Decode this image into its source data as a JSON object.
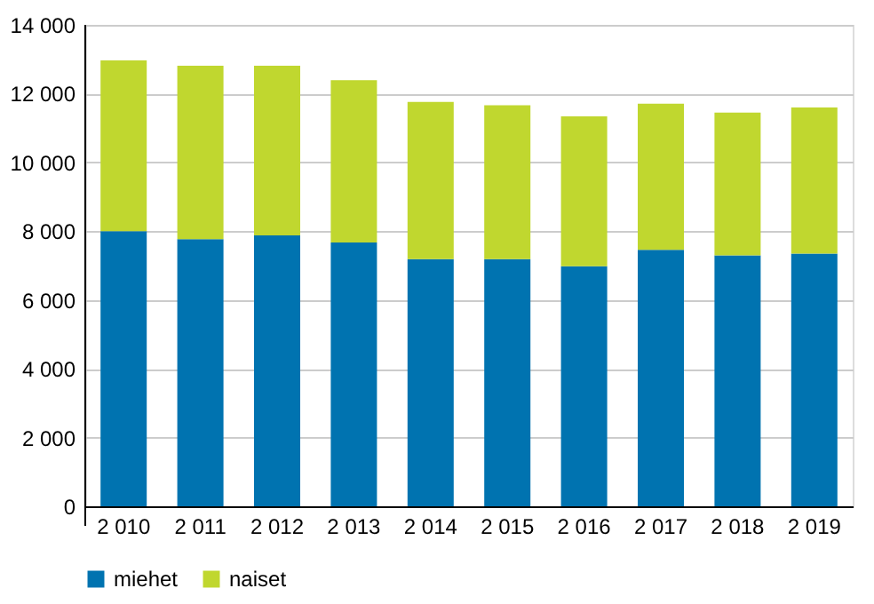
{
  "chart_data": {
    "type": "bar",
    "stacked": true,
    "categories": [
      "2 010",
      "2 011",
      "2 012",
      "2 013",
      "2 014",
      "2 015",
      "2 016",
      "2 017",
      "2 018",
      "2 019"
    ],
    "series": [
      {
        "name": "miehet",
        "color": "#0073b0",
        "values": [
          8000,
          7770,
          7880,
          7670,
          7190,
          7190,
          6980,
          7460,
          7300,
          7350
        ]
      },
      {
        "name": "naiset",
        "color": "#c0d72f",
        "values": [
          4970,
          5040,
          4930,
          4720,
          4570,
          4470,
          4360,
          4250,
          4150,
          4250
        ]
      }
    ],
    "ylim": [
      0,
      14000
    ],
    "yticks": [
      0,
      {
        "value": 2000,
        "label": "2 000"
      },
      {
        "value": 4000,
        "label": "4 000"
      },
      {
        "value": 6000,
        "label": "6 000"
      },
      {
        "value": 8000,
        "label": "8 000"
      },
      {
        "value": 10000,
        "label": "10 000"
      },
      {
        "value": 12000,
        "label": "12 000"
      },
      {
        "value": 14000,
        "label": "14 000"
      }
    ],
    "grid": "y",
    "legend": "bottom"
  }
}
